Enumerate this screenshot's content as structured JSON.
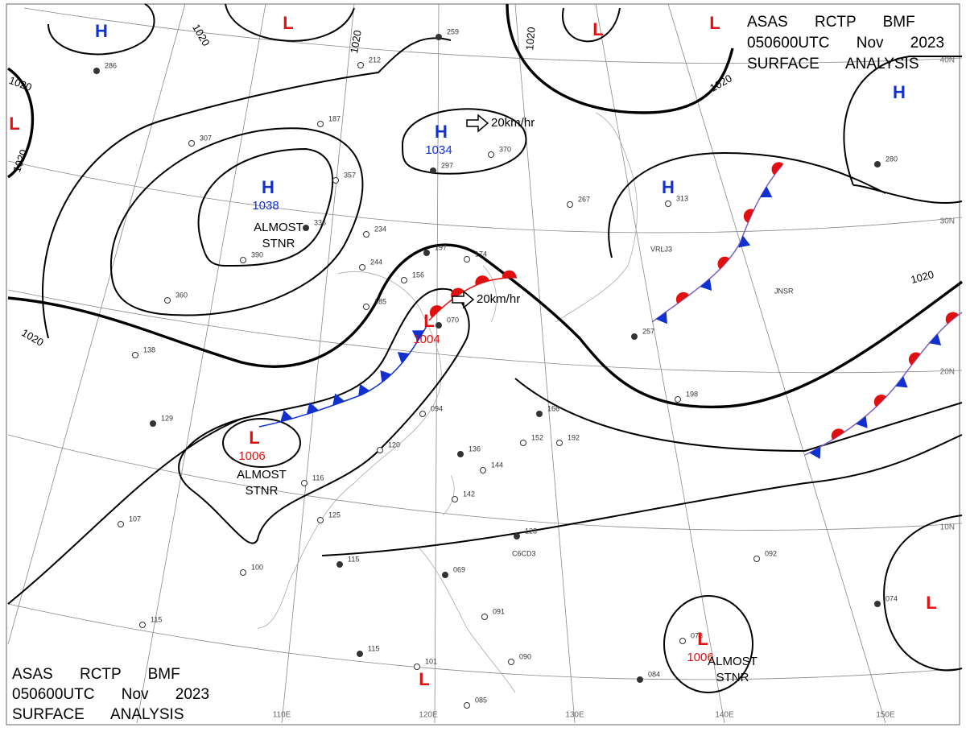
{
  "header_top": [
    "ASAS RCTP BMF",
    "050600UTC Nov 2023",
    "SURFACE ANALYSIS"
  ],
  "header_bottom": [
    "ASAS RCTP BMF",
    "050600UTC Nov 2023",
    "SURFACE ANALYSIS"
  ],
  "centers": [
    {
      "symbol": "H",
      "pressure": null
    },
    {
      "symbol": "L",
      "pressure": null
    },
    {
      "symbol": "L",
      "pressure": null
    },
    {
      "symbol": "L",
      "pressure": null
    },
    {
      "symbol": "L",
      "pressure": null
    },
    {
      "symbol": "H",
      "pressure": 1034
    },
    {
      "symbol": "H",
      "pressure": 1038
    },
    {
      "symbol": "H",
      "pressure": null
    },
    {
      "symbol": "H",
      "pressure": null
    },
    {
      "symbol": "L",
      "pressure": 1004
    },
    {
      "symbol": "L",
      "pressure": 1006
    },
    {
      "symbol": "L",
      "pressure": null
    },
    {
      "symbol": "L",
      "pressure": 1006
    },
    {
      "symbol": "L",
      "pressure": null
    }
  ],
  "notes": [
    [
      "ALMOST",
      "STNR"
    ],
    [
      "ALMOST",
      "STNR"
    ],
    [
      "ALMOST",
      "STNR"
    ]
  ],
  "movements": [
    "20km/hr",
    "20km/hr"
  ],
  "isobar_labels": [
    "1020",
    "1020",
    "1020",
    "1020",
    "1020",
    "1020",
    "1020",
    "1020"
  ],
  "lat_labels": [
    "40N",
    "30N",
    "20N",
    "10N"
  ],
  "lon_labels": [
    "110E",
    "120E",
    "130E",
    "140E",
    "150E"
  ],
  "place_codes": [
    "C6CD3",
    "JNSR",
    "VRLJ3"
  ],
  "stations": [
    "259",
    "212",
    "187",
    "297",
    "267",
    "313",
    "280",
    "370",
    "234",
    "197",
    "174",
    "156",
    "070",
    "094",
    "120",
    "136",
    "144",
    "142",
    "166",
    "152",
    "192",
    "129",
    "107",
    "100",
    "115",
    "125",
    "116",
    "069",
    "091",
    "090",
    "084",
    "085",
    "115",
    "115",
    "101",
    "092",
    "074",
    "078",
    "198",
    "257",
    "360",
    "390",
    "286",
    "307",
    "357",
    "336",
    "138",
    "185",
    "123",
    "244"
  ]
}
